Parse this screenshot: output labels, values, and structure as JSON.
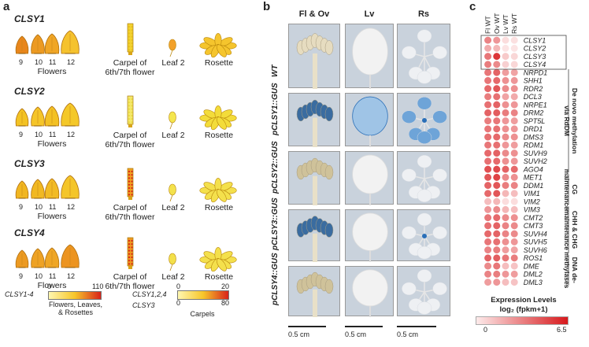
{
  "panel_a": {
    "label": "a",
    "flower_numbers": [
      "9",
      "10",
      "11",
      "12"
    ],
    "flowers_label": "Flowers",
    "carpel_label": "Carpel of\n6th/7th flower",
    "leaf_label": "Leaf 2",
    "rosette_label": "Rosette",
    "rows": [
      {
        "gene": "CLSY1",
        "flower_colors": [
          "#e8861c",
          "#ec9a22",
          "#f0a626",
          "#f5c22e"
        ],
        "carpel_color": "#f3d22e",
        "carpel_dot": "#e8c020",
        "leaf_color": "#f2a12a",
        "rosette_color": "#f5c52d"
      },
      {
        "gene": "CLSY2",
        "flower_colors": [
          "#f3c324",
          "#f5c529",
          "#f3c124",
          "#f4c829"
        ],
        "carpel_color": "#f5e86a",
        "carpel_dot": "#eadb40",
        "leaf_color": "#f4e64e",
        "rosette_color": "#f3dc3a"
      },
      {
        "gene": "CLSY3",
        "flower_colors": [
          "#f1b621",
          "#f1b822",
          "#f2bb24",
          "#f4c52a"
        ],
        "carpel_color": "#f0a020",
        "carpel_dot": "#d8231b",
        "leaf_color": "#f4e24c",
        "rosette_color": "#f4e04c"
      },
      {
        "gene": "CLSY4",
        "flower_colors": [
          "#ec9a22",
          "#eea224",
          "#efa625",
          "#ec9420"
        ],
        "carpel_color": "#ef9a20",
        "carpel_dot": "#d8231b",
        "leaf_color": "#f3e04a",
        "rosette_color": "#f4e04c"
      }
    ],
    "legend1": {
      "gene": "CLSY1-4",
      "min": "0",
      "max": "110",
      "caption": "Flowers, Leaves,\n& Rosettes"
    },
    "legend2": {
      "gene_a": "CLSY1,2,4",
      "min_a": "0",
      "max_a": "20",
      "gene_b": "CLSY3",
      "min_b": "0",
      "max_b": "80",
      "caption": "Carpels"
    },
    "colors": {
      "scale_start": "#fff7b0",
      "scale_mid": "#f7c62a",
      "scale_end": "#d8231b"
    }
  },
  "panel_b": {
    "label": "b",
    "columns": [
      "Fl & Ov",
      "Lv",
      "Rs"
    ],
    "rows": [
      "WT",
      "pCLSY1::GUS",
      "pCLSY2::GUS",
      "pCLSY3::GUS",
      "pCLSY4::GUS"
    ],
    "scale_label": "0.5 cm",
    "stain_color": "#2a6fb8"
  },
  "panel_c": {
    "label": "c",
    "columns": [
      "Fl WT",
      "Ov WT",
      "Lv WT",
      "Rs WT"
    ],
    "genes": [
      "CLSY1",
      "CLSY2",
      "CLSY3",
      "CLSY4",
      "NRPD1",
      "SHH1",
      "RDR2",
      "DCL3",
      "NRPE1",
      "DRM2",
      "SPT5L",
      "DRD1",
      "DMS3",
      "RDM1",
      "SUVH9",
      "SUVH2",
      "AGO4",
      "MET1",
      "DDM1",
      "VIM1",
      "VIM2",
      "VIM3",
      "CMT2",
      "CMT3",
      "SUVH4",
      "SUVH5",
      "SUVH6",
      "ROS1",
      "DME",
      "DML2",
      "DML3"
    ],
    "values": [
      [
        3.2,
        2.6,
        0.4,
        0.3
      ],
      [
        2.0,
        1.6,
        0.2,
        0.2
      ],
      [
        3.6,
        5.6,
        1.0,
        0.6
      ],
      [
        3.4,
        3.0,
        0.8,
        0.6
      ],
      [
        3.6,
        4.2,
        2.4,
        2.2
      ],
      [
        3.6,
        4.0,
        2.8,
        2.6
      ],
      [
        4.0,
        4.6,
        3.0,
        2.8
      ],
      [
        3.4,
        3.8,
        2.2,
        2.0
      ],
      [
        3.8,
        4.2,
        2.8,
        2.6
      ],
      [
        4.2,
        4.4,
        3.4,
        3.2
      ],
      [
        3.4,
        3.6,
        2.6,
        2.4
      ],
      [
        3.6,
        3.8,
        2.8,
        2.6
      ],
      [
        3.8,
        4.0,
        3.0,
        2.8
      ],
      [
        3.6,
        3.8,
        2.6,
        2.4
      ],
      [
        4.0,
        4.2,
        3.0,
        2.8
      ],
      [
        3.8,
        4.0,
        2.8,
        2.6
      ],
      [
        4.8,
        5.0,
        4.2,
        4.0
      ],
      [
        4.6,
        5.2,
        3.0,
        2.8
      ],
      [
        4.2,
        4.6,
        3.4,
        3.2
      ],
      [
        4.0,
        4.6,
        1.6,
        1.4
      ],
      [
        1.4,
        1.6,
        0.4,
        0.4
      ],
      [
        2.6,
        3.0,
        1.6,
        1.4
      ],
      [
        3.6,
        4.0,
        3.0,
        2.8
      ],
      [
        3.8,
        4.2,
        3.2,
        3.0
      ],
      [
        4.0,
        4.2,
        3.2,
        3.0
      ],
      [
        3.6,
        3.8,
        2.8,
        2.6
      ],
      [
        3.2,
        3.4,
        2.4,
        2.2
      ],
      [
        4.2,
        4.4,
        3.6,
        3.4
      ],
      [
        3.0,
        3.6,
        1.4,
        1.2
      ],
      [
        3.2,
        3.4,
        2.6,
        2.4
      ],
      [
        2.4,
        2.6,
        1.4,
        1.2
      ]
    ],
    "groups": [
      {
        "label": "De novo methylation\nvia RdDM",
        "start": 4,
        "end": 16
      },
      {
        "label": "CG\nmaintenance",
        "start": 17,
        "end": 20
      },
      {
        "label": "CHH & CHG\nmaintenance",
        "start": 21,
        "end": 26
      },
      {
        "label": "DNA de-\nmethylases",
        "start": 27,
        "end": 30
      }
    ],
    "legend_title": "Expression Levels",
    "legend_unit": "log₂ (fpkm+1)",
    "legend_min": "0",
    "legend_max": "6.5",
    "vmax": 6.5,
    "colors": {
      "low": "#fdeaea",
      "high": "#d7191c"
    }
  }
}
